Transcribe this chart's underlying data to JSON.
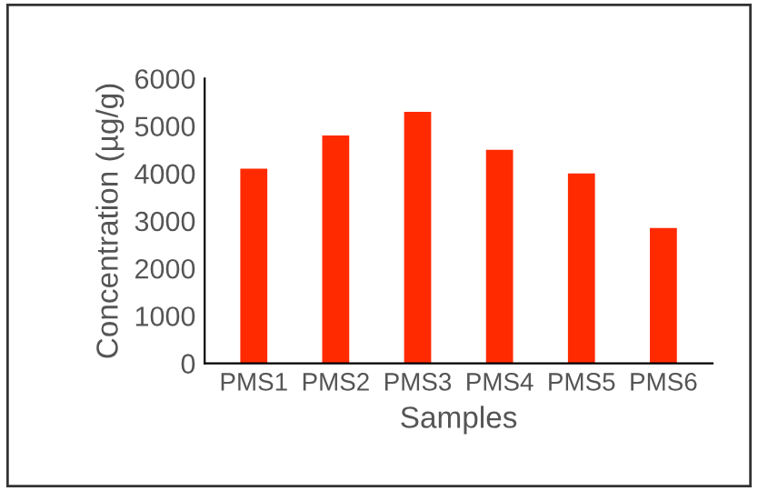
{
  "chart_data": {
    "type": "bar",
    "xlabel": "Samples",
    "ylabel": "Concentration (µg/g)",
    "categories": [
      "PMS1",
      "PMS2",
      "PMS3",
      "PMS4",
      "PMS5",
      "PMS6"
    ],
    "values": [
      4100,
      4800,
      5300,
      4500,
      4000,
      2850
    ],
    "color": "#ff2a00",
    "ylim": [
      0,
      6000
    ],
    "yticks": [
      0,
      1000,
      2000,
      3000,
      4000,
      5000,
      6000
    ],
    "grid": false,
    "legend": false
  }
}
